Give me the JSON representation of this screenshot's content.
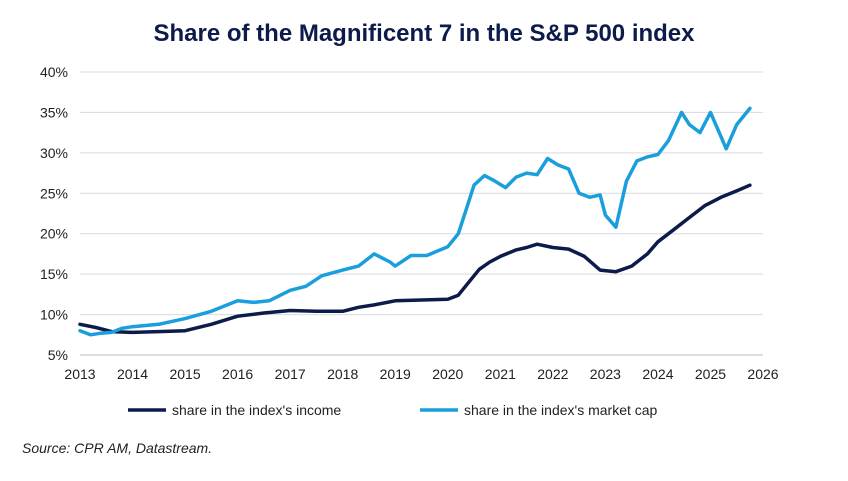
{
  "chart_data": {
    "type": "line",
    "title": "Share of the Magnificent 7 in the S&P 500 index",
    "xlabel": "",
    "ylabel": "",
    "xlim": [
      2013,
      2026
    ],
    "ylim": [
      5,
      40
    ],
    "y_ticks": [
      5,
      10,
      15,
      20,
      25,
      30,
      35,
      40
    ],
    "y_tick_labels": [
      "5%",
      "10%",
      "15%",
      "20%",
      "25%",
      "30%",
      "35%",
      "40%"
    ],
    "x_ticks": [
      2013,
      2014,
      2015,
      2016,
      2017,
      2018,
      2019,
      2020,
      2021,
      2022,
      2023,
      2024,
      2025,
      2026
    ],
    "x_tick_labels": [
      "2013",
      "2014",
      "2015",
      "2016",
      "2017",
      "2018",
      "2019",
      "2020",
      "2021",
      "2022",
      "2023",
      "2024",
      "2025",
      "2026"
    ],
    "grid": true,
    "legend_position": "bottom",
    "series": [
      {
        "name": "share in the index's income",
        "color": "#0d1b4b",
        "x": [
          2013.0,
          2013.3,
          2013.6,
          2014.0,
          2014.5,
          2015.0,
          2015.5,
          2016.0,
          2016.5,
          2017.0,
          2017.5,
          2018.0,
          2018.3,
          2018.6,
          2019.0,
          2019.5,
          2020.0,
          2020.2,
          2020.4,
          2020.6,
          2020.8,
          2021.0,
          2021.3,
          2021.5,
          2021.7,
          2022.0,
          2022.3,
          2022.6,
          2022.9,
          2023.2,
          2023.5,
          2023.8,
          2024.0,
          2024.3,
          2024.6,
          2024.9,
          2025.2,
          2025.5,
          2025.75
        ],
        "values": [
          8.8,
          8.4,
          7.9,
          7.8,
          7.9,
          8.0,
          8.8,
          9.8,
          10.2,
          10.5,
          10.4,
          10.4,
          10.9,
          11.2,
          11.7,
          11.8,
          11.9,
          12.4,
          14.0,
          15.6,
          16.5,
          17.2,
          18.0,
          18.3,
          18.7,
          18.3,
          18.1,
          17.2,
          15.5,
          15.3,
          16.0,
          17.5,
          19.0,
          20.5,
          22.0,
          23.5,
          24.5,
          25.3,
          26.0
        ]
      },
      {
        "name": "share in the index's market cap",
        "color": "#1a9fdc",
        "x": [
          2013.0,
          2013.2,
          2013.4,
          2013.6,
          2013.8,
          2014.0,
          2014.5,
          2015.0,
          2015.5,
          2016.0,
          2016.3,
          2016.6,
          2017.0,
          2017.3,
          2017.6,
          2018.0,
          2018.3,
          2018.6,
          2018.9,
          2019.0,
          2019.3,
          2019.6,
          2020.0,
          2020.2,
          2020.35,
          2020.5,
          2020.7,
          2020.9,
          2021.1,
          2021.3,
          2021.5,
          2021.7,
          2021.9,
          2022.1,
          2022.3,
          2022.5,
          2022.7,
          2022.9,
          2023.0,
          2023.2,
          2023.4,
          2023.6,
          2023.8,
          2024.0,
          2024.2,
          2024.45,
          2024.6,
          2024.8,
          2025.0,
          2025.2,
          2025.3,
          2025.5,
          2025.75
        ],
        "values": [
          8.0,
          7.5,
          7.7,
          7.8,
          8.3,
          8.5,
          8.8,
          9.5,
          10.4,
          11.7,
          11.5,
          11.7,
          13.0,
          13.5,
          14.8,
          15.5,
          16.0,
          17.5,
          16.5,
          16.0,
          17.3,
          17.3,
          18.4,
          20.0,
          23.0,
          26.0,
          27.2,
          26.5,
          25.7,
          27.0,
          27.5,
          27.3,
          29.3,
          28.5,
          28.0,
          25.0,
          24.5,
          24.8,
          22.3,
          20.8,
          26.5,
          29.0,
          29.5,
          29.8,
          31.5,
          35.0,
          33.5,
          32.5,
          35.0,
          32.0,
          30.5,
          33.5,
          35.5
        ]
      }
    ]
  },
  "source_note": "Source: CPR AM, Datastream."
}
